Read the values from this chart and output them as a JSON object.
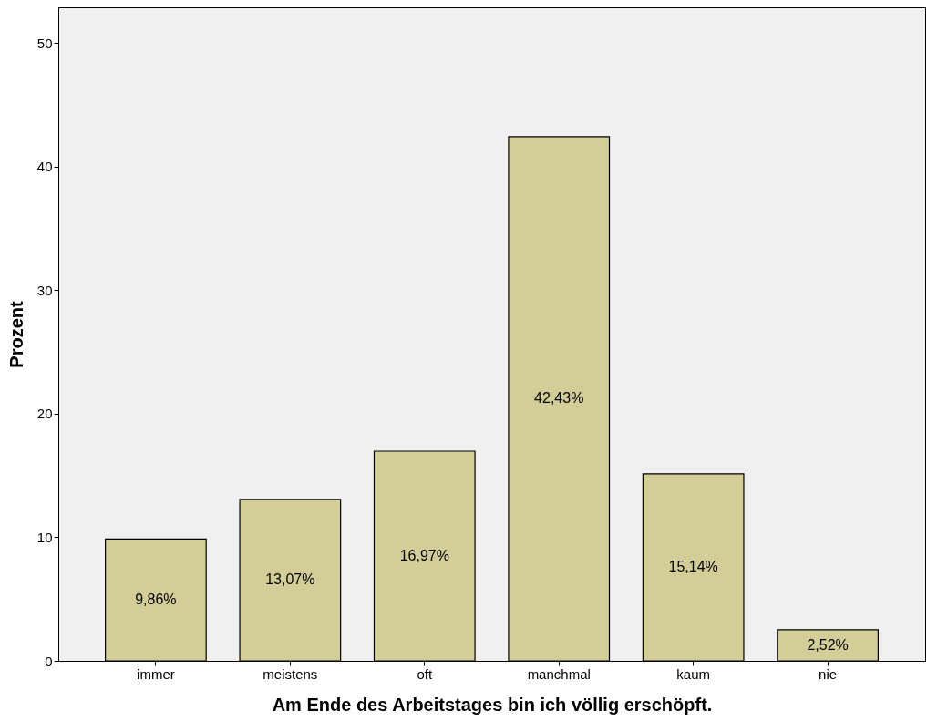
{
  "chart_data": {
    "type": "bar",
    "xlabel": "Am Ende des Arbeitstages bin ich völlig erschöpft.",
    "ylabel": "Prozent",
    "categories": [
      "immer",
      "meistens",
      "oft",
      "manchmal",
      "kaum",
      "nie"
    ],
    "values": [
      9.86,
      13.07,
      16.97,
      42.43,
      15.14,
      2.52
    ],
    "value_labels": [
      "9,86%",
      "13,07%",
      "16,97%",
      "42,43%",
      "15,14%",
      "2,52%"
    ],
    "color": "#d3cd98",
    "ylim": [
      0,
      52.9
    ],
    "yticks": [
      0,
      10,
      20,
      30,
      40,
      50
    ],
    "grid": false
  }
}
